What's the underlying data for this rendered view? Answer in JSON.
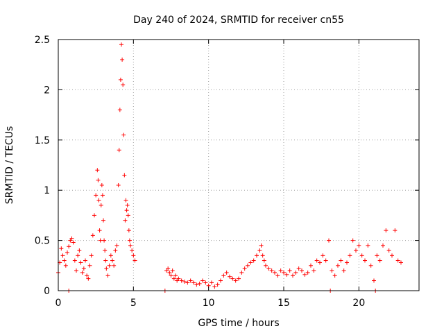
{
  "chart_data": {
    "type": "scatter",
    "title": "Day 240 of 2024, SRMTID for receiver cn55",
    "xlabel": "GPS time / hours",
    "ylabel": "SRMTID / TECUs",
    "xlim": [
      0,
      24
    ],
    "ylim": [
      0,
      2.5
    ],
    "xticks": [
      0,
      5,
      10,
      15,
      20
    ],
    "yticks": [
      0,
      0.5,
      1,
      1.5,
      2,
      2.5
    ],
    "xtick_labels": [
      "0",
      "5",
      "10",
      "15",
      "20"
    ],
    "ytick_labels": [
      "0",
      "0.5",
      "1",
      "1.5",
      "2",
      "2.5"
    ],
    "grid": true,
    "marker": "+",
    "color": "#ff0000",
    "series": [
      {
        "name": "SRMTID",
        "x": [
          0.0,
          0.1,
          0.2,
          0.3,
          0.4,
          0.5,
          0.6,
          0.7,
          0.8,
          0.9,
          1.0,
          1.1,
          1.2,
          1.3,
          1.4,
          1.5,
          1.6,
          1.7,
          1.8,
          1.9,
          2.0,
          2.1,
          2.2,
          2.3,
          2.4,
          2.5,
          2.6,
          2.65,
          2.7,
          2.75,
          2.8,
          2.85,
          2.9,
          2.95,
          3.0,
          3.05,
          3.1,
          3.15,
          3.2,
          3.3,
          3.4,
          3.5,
          3.6,
          3.7,
          3.8,
          3.9,
          4.0,
          4.05,
          4.1,
          4.15,
          4.2,
          4.25,
          4.3,
          4.35,
          4.4,
          4.45,
          4.5,
          4.55,
          4.6,
          4.65,
          4.7,
          4.75,
          4.8,
          4.9,
          5.0,
          5.1,
          0.7,
          7.1,
          7.2,
          7.3,
          7.4,
          7.5,
          7.6,
          7.7,
          7.8,
          7.9,
          8.0,
          8.2,
          8.4,
          8.6,
          8.8,
          9.0,
          9.2,
          9.4,
          9.6,
          9.8,
          10.0,
          10.2,
          10.4,
          10.6,
          10.8,
          11.0,
          11.2,
          11.4,
          11.6,
          11.8,
          12.0,
          12.2,
          12.4,
          12.6,
          12.8,
          13.0,
          13.2,
          13.4,
          13.5,
          13.6,
          13.7,
          13.8,
          14.0,
          14.2,
          14.4,
          14.6,
          14.8,
          15.0,
          15.2,
          15.4,
          15.6,
          15.8,
          16.0,
          16.2,
          16.4,
          16.6,
          16.8,
          17.0,
          17.2,
          17.4,
          17.6,
          17.8,
          18.0,
          18.1,
          18.2,
          18.4,
          18.6,
          18.8,
          19.0,
          19.2,
          19.4,
          19.6,
          19.8,
          20.0,
          20.2,
          20.4,
          20.6,
          20.8,
          21.0,
          21.1,
          21.2,
          21.4,
          21.6,
          21.8,
          22.0,
          22.2,
          22.4,
          22.6,
          22.8
        ],
        "y": [
          0.18,
          0.28,
          0.42,
          0.35,
          0.3,
          0.25,
          0.38,
          0.44,
          0.5,
          0.52,
          0.48,
          0.3,
          0.2,
          0.35,
          0.4,
          0.28,
          0.18,
          0.22,
          0.3,
          0.15,
          0.12,
          0.25,
          0.35,
          0.55,
          0.75,
          0.95,
          1.2,
          1.1,
          0.9,
          0.6,
          0.5,
          0.85,
          1.05,
          0.95,
          0.7,
          0.5,
          0.4,
          0.3,
          0.22,
          0.15,
          0.25,
          0.35,
          0.3,
          0.25,
          0.4,
          0.45,
          1.05,
          1.4,
          1.8,
          2.1,
          2.45,
          2.3,
          2.05,
          1.55,
          1.15,
          0.7,
          0.9,
          0.8,
          0.85,
          0.75,
          0.6,
          0.5,
          0.45,
          0.4,
          0.35,
          0.3,
          0.0,
          0.0,
          0.2,
          0.22,
          0.18,
          0.15,
          0.2,
          0.12,
          0.15,
          0.1,
          0.12,
          0.1,
          0.09,
          0.08,
          0.1,
          0.08,
          0.06,
          0.07,
          0.1,
          0.08,
          0.05,
          0.08,
          0.04,
          0.06,
          0.1,
          0.15,
          0.18,
          0.14,
          0.12,
          0.1,
          0.12,
          0.18,
          0.22,
          0.25,
          0.28,
          0.3,
          0.35,
          0.4,
          0.45,
          0.35,
          0.3,
          0.25,
          0.22,
          0.2,
          0.18,
          0.15,
          0.2,
          0.18,
          0.16,
          0.2,
          0.15,
          0.18,
          0.22,
          0.2,
          0.16,
          0.18,
          0.25,
          0.2,
          0.3,
          0.28,
          0.35,
          0.3,
          0.5,
          0.0,
          0.2,
          0.15,
          0.25,
          0.3,
          0.2,
          0.28,
          0.35,
          0.5,
          0.4,
          0.45,
          0.35,
          0.3,
          0.45,
          0.25,
          0.1,
          0.0,
          0.35,
          0.3,
          0.45,
          0.6,
          0.4,
          0.35,
          0.6,
          0.3,
          0.28
        ]
      }
    ]
  }
}
